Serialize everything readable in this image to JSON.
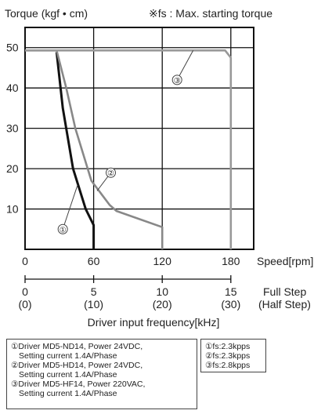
{
  "chart_data": {
    "type": "line",
    "title": "Torque (kgf • cm)",
    "note": "※fs : Max. starting torque",
    "ylabel": "Torque (kgf • cm)",
    "ylim": [
      0,
      55
    ],
    "yticks": [
      10,
      20,
      30,
      40,
      50
    ],
    "xlim": [
      0,
      200
    ],
    "xlabel_speed": "Speed[rpm]",
    "xticks_speed": [
      "0",
      "60",
      "120",
      "180"
    ],
    "xticks_speed_values": [
      0,
      60,
      120,
      180
    ],
    "xticks_fullstep": [
      "0",
      "5",
      "10",
      "15"
    ],
    "xticks_fullstep_values": [
      0,
      60,
      120,
      180
    ],
    "xlabel_fullstep": "Full Step",
    "xticks_halfstep": [
      "(0)",
      "(10)",
      "(20)",
      "(30)"
    ],
    "xlabel_halfstep": "(Half Step)",
    "xlabel_freq": "Driver input frequency[kHz]",
    "grid": true,
    "series": [
      {
        "name": "①",
        "color": "#111111",
        "x": [
          27.6,
          33,
          42,
          53,
          60,
          60
        ],
        "y": [
          48.9,
          35,
          20,
          10,
          6,
          0
        ]
      },
      {
        "name": "②",
        "color": "#888888",
        "x": [
          0,
          27.6,
          36,
          44,
          58,
          74,
          80,
          120,
          120
        ],
        "y": [
          49.3,
          49.3,
          40,
          30,
          17,
          11,
          9.5,
          5.5,
          0
        ]
      },
      {
        "name": "③",
        "color": "#999999",
        "x": [
          0,
          175,
          180,
          180
        ],
        "y": [
          49.3,
          49.3,
          47.5,
          0
        ]
      }
    ],
    "series_callouts": [
      "①",
      "②",
      "③"
    ]
  },
  "legend": {
    "drivers": [
      {
        "line1": "①Driver MD5-ND14, Power 24VDC,",
        "line2": "Setting current 1.4A/Phase"
      },
      {
        "line1": "②Driver MD5-HD14, Power 24VDC,",
        "line2": "Setting current 1.4A/Phase"
      },
      {
        "line1": "③Driver MD5-HF14, Power 220VAC,",
        "line2": "Setting current 1.4A/Phase"
      }
    ],
    "fs": [
      "①fs:2.3kpps",
      "②fs:2.3kpps",
      "③fs:2.8kpps"
    ]
  }
}
